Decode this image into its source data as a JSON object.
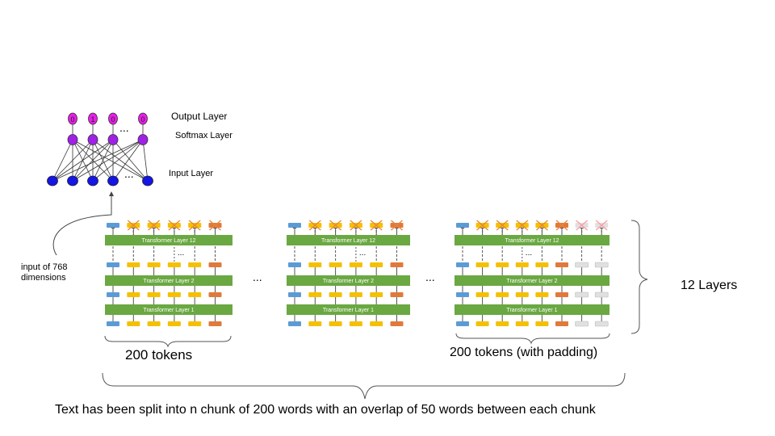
{
  "labels": {
    "output_layer": "Output Layer",
    "softmax_layer": "Softmax Layer",
    "input_layer": "Input Layer",
    "input_dims": "input of 768 dimensions",
    "tokens_left": "200 tokens",
    "tokens_right": "200 tokens (with padding)",
    "layers_count": "12 Layers",
    "caption": "Text has been split into n chunk of 200 words with an overlap of 50 words between each chunk"
  },
  "network": {
    "output_values": [
      "0",
      "1",
      "0",
      "0"
    ],
    "ellipsis": "...",
    "colors": {
      "output": "#e81ee8",
      "softmax": "#a020e8",
      "input": "#1515e6"
    }
  },
  "chunks": {
    "layer_names": [
      "Transformer Layer 12",
      "Transformer Layer 2",
      "Transformer Layer 1"
    ],
    "dots": "...",
    "between": "...",
    "colors": {
      "layer": "#6aa842",
      "cls": "#5b9bd5",
      "token": "#f4c000",
      "sep": "#e0793a",
      "pad": "#e0e0e0",
      "cross_active": "#e8833a",
      "cross_pad": "#ff9aa2"
    }
  }
}
